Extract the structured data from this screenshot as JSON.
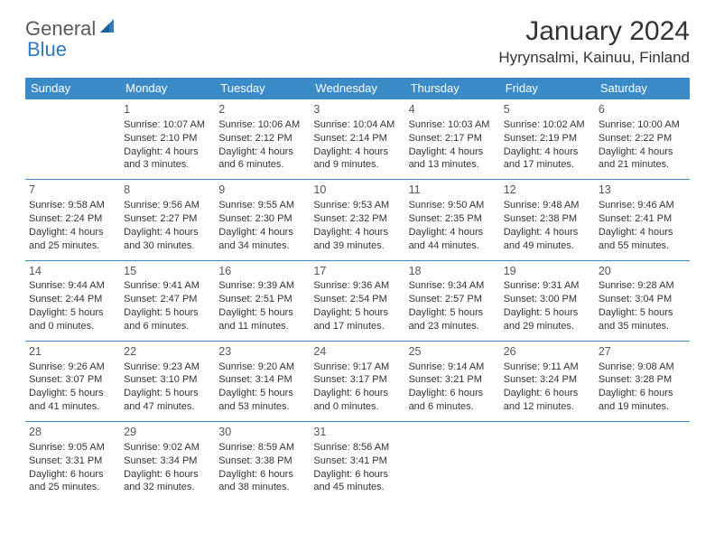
{
  "logo": {
    "word1": "General",
    "word2": "Blue"
  },
  "title": "January 2024",
  "location": "Hyrynsalmi, Kainuu, Finland",
  "colors": {
    "header_bg": "#3b8bc8",
    "header_text": "#ffffff",
    "border": "#3b8bc8",
    "logo_gray": "#5a5a5a",
    "logo_blue": "#2f7bbf"
  },
  "day_headers": [
    "Sunday",
    "Monday",
    "Tuesday",
    "Wednesday",
    "Thursday",
    "Friday",
    "Saturday"
  ],
  "weeks": [
    [
      null,
      {
        "n": "1",
        "sr": "Sunrise: 10:07 AM",
        "ss": "Sunset: 2:10 PM",
        "d1": "Daylight: 4 hours",
        "d2": "and 3 minutes."
      },
      {
        "n": "2",
        "sr": "Sunrise: 10:06 AM",
        "ss": "Sunset: 2:12 PM",
        "d1": "Daylight: 4 hours",
        "d2": "and 6 minutes."
      },
      {
        "n": "3",
        "sr": "Sunrise: 10:04 AM",
        "ss": "Sunset: 2:14 PM",
        "d1": "Daylight: 4 hours",
        "d2": "and 9 minutes."
      },
      {
        "n": "4",
        "sr": "Sunrise: 10:03 AM",
        "ss": "Sunset: 2:17 PM",
        "d1": "Daylight: 4 hours",
        "d2": "and 13 minutes."
      },
      {
        "n": "5",
        "sr": "Sunrise: 10:02 AM",
        "ss": "Sunset: 2:19 PM",
        "d1": "Daylight: 4 hours",
        "d2": "and 17 minutes."
      },
      {
        "n": "6",
        "sr": "Sunrise: 10:00 AM",
        "ss": "Sunset: 2:22 PM",
        "d1": "Daylight: 4 hours",
        "d2": "and 21 minutes."
      }
    ],
    [
      {
        "n": "7",
        "sr": "Sunrise: 9:58 AM",
        "ss": "Sunset: 2:24 PM",
        "d1": "Daylight: 4 hours",
        "d2": "and 25 minutes."
      },
      {
        "n": "8",
        "sr": "Sunrise: 9:56 AM",
        "ss": "Sunset: 2:27 PM",
        "d1": "Daylight: 4 hours",
        "d2": "and 30 minutes."
      },
      {
        "n": "9",
        "sr": "Sunrise: 9:55 AM",
        "ss": "Sunset: 2:30 PM",
        "d1": "Daylight: 4 hours",
        "d2": "and 34 minutes."
      },
      {
        "n": "10",
        "sr": "Sunrise: 9:53 AM",
        "ss": "Sunset: 2:32 PM",
        "d1": "Daylight: 4 hours",
        "d2": "and 39 minutes."
      },
      {
        "n": "11",
        "sr": "Sunrise: 9:50 AM",
        "ss": "Sunset: 2:35 PM",
        "d1": "Daylight: 4 hours",
        "d2": "and 44 minutes."
      },
      {
        "n": "12",
        "sr": "Sunrise: 9:48 AM",
        "ss": "Sunset: 2:38 PM",
        "d1": "Daylight: 4 hours",
        "d2": "and 49 minutes."
      },
      {
        "n": "13",
        "sr": "Sunrise: 9:46 AM",
        "ss": "Sunset: 2:41 PM",
        "d1": "Daylight: 4 hours",
        "d2": "and 55 minutes."
      }
    ],
    [
      {
        "n": "14",
        "sr": "Sunrise: 9:44 AM",
        "ss": "Sunset: 2:44 PM",
        "d1": "Daylight: 5 hours",
        "d2": "and 0 minutes."
      },
      {
        "n": "15",
        "sr": "Sunrise: 9:41 AM",
        "ss": "Sunset: 2:47 PM",
        "d1": "Daylight: 5 hours",
        "d2": "and 6 minutes."
      },
      {
        "n": "16",
        "sr": "Sunrise: 9:39 AM",
        "ss": "Sunset: 2:51 PM",
        "d1": "Daylight: 5 hours",
        "d2": "and 11 minutes."
      },
      {
        "n": "17",
        "sr": "Sunrise: 9:36 AM",
        "ss": "Sunset: 2:54 PM",
        "d1": "Daylight: 5 hours",
        "d2": "and 17 minutes."
      },
      {
        "n": "18",
        "sr": "Sunrise: 9:34 AM",
        "ss": "Sunset: 2:57 PM",
        "d1": "Daylight: 5 hours",
        "d2": "and 23 minutes."
      },
      {
        "n": "19",
        "sr": "Sunrise: 9:31 AM",
        "ss": "Sunset: 3:00 PM",
        "d1": "Daylight: 5 hours",
        "d2": "and 29 minutes."
      },
      {
        "n": "20",
        "sr": "Sunrise: 9:28 AM",
        "ss": "Sunset: 3:04 PM",
        "d1": "Daylight: 5 hours",
        "d2": "and 35 minutes."
      }
    ],
    [
      {
        "n": "21",
        "sr": "Sunrise: 9:26 AM",
        "ss": "Sunset: 3:07 PM",
        "d1": "Daylight: 5 hours",
        "d2": "and 41 minutes."
      },
      {
        "n": "22",
        "sr": "Sunrise: 9:23 AM",
        "ss": "Sunset: 3:10 PM",
        "d1": "Daylight: 5 hours",
        "d2": "and 47 minutes."
      },
      {
        "n": "23",
        "sr": "Sunrise: 9:20 AM",
        "ss": "Sunset: 3:14 PM",
        "d1": "Daylight: 5 hours",
        "d2": "and 53 minutes."
      },
      {
        "n": "24",
        "sr": "Sunrise: 9:17 AM",
        "ss": "Sunset: 3:17 PM",
        "d1": "Daylight: 6 hours",
        "d2": "and 0 minutes."
      },
      {
        "n": "25",
        "sr": "Sunrise: 9:14 AM",
        "ss": "Sunset: 3:21 PM",
        "d1": "Daylight: 6 hours",
        "d2": "and 6 minutes."
      },
      {
        "n": "26",
        "sr": "Sunrise: 9:11 AM",
        "ss": "Sunset: 3:24 PM",
        "d1": "Daylight: 6 hours",
        "d2": "and 12 minutes."
      },
      {
        "n": "27",
        "sr": "Sunrise: 9:08 AM",
        "ss": "Sunset: 3:28 PM",
        "d1": "Daylight: 6 hours",
        "d2": "and 19 minutes."
      }
    ],
    [
      {
        "n": "28",
        "sr": "Sunrise: 9:05 AM",
        "ss": "Sunset: 3:31 PM",
        "d1": "Daylight: 6 hours",
        "d2": "and 25 minutes."
      },
      {
        "n": "29",
        "sr": "Sunrise: 9:02 AM",
        "ss": "Sunset: 3:34 PM",
        "d1": "Daylight: 6 hours",
        "d2": "and 32 minutes."
      },
      {
        "n": "30",
        "sr": "Sunrise: 8:59 AM",
        "ss": "Sunset: 3:38 PM",
        "d1": "Daylight: 6 hours",
        "d2": "and 38 minutes."
      },
      {
        "n": "31",
        "sr": "Sunrise: 8:56 AM",
        "ss": "Sunset: 3:41 PM",
        "d1": "Daylight: 6 hours",
        "d2": "and 45 minutes."
      },
      null,
      null,
      null
    ]
  ]
}
